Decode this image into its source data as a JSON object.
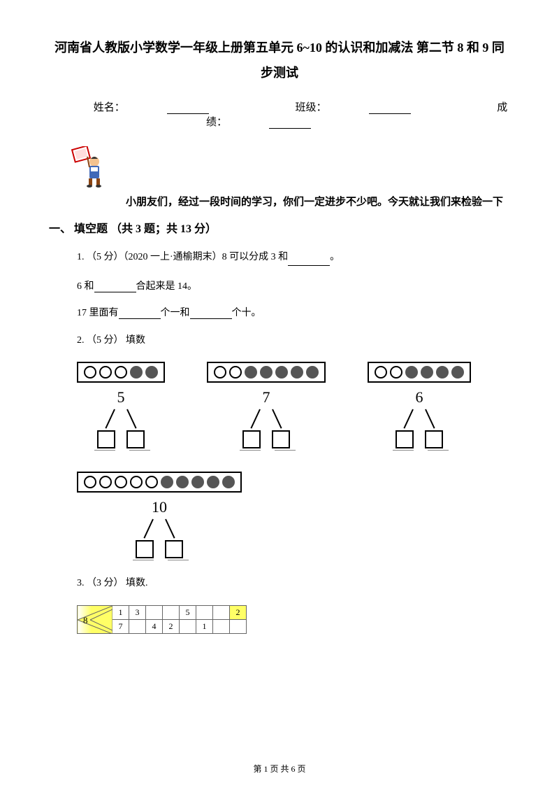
{
  "title": "河南省人教版小学数学一年级上册第五单元 6~10 的认识和加减法 第二节 8 和 9 同步测试",
  "info": {
    "name_label": "姓名：",
    "class_label": "班级：",
    "score_label": "成绩："
  },
  "intro": "小朋友们，经过一段时间的学习，你们一定进步不少吧。今天就让我们来检验一下",
  "section1": {
    "header": "一、 填空题 （共 3 题；共 13 分）",
    "q1": {
      "prefix": "1. （5 分）（2020 一上·通榆期末）8 可以分成 3 和",
      "suffix": "。",
      "line2_a": "6 和",
      "line2_b": "合起来是 14。",
      "line3_a": "17 里面有",
      "line3_b": "个一和",
      "line3_c": "个十。"
    },
    "q2": {
      "label": "2. （5 分） 填数",
      "diagrams": [
        {
          "total": "5",
          "white": 3,
          "filled": 2
        },
        {
          "total": "7",
          "white": 2,
          "filled": 5
        },
        {
          "total": "6",
          "white": 2,
          "filled": 4
        },
        {
          "total": "10",
          "white": 5,
          "filled": 5
        }
      ]
    },
    "q3": {
      "label": "3. （3 分） 填数.",
      "left_num": "8",
      "row1": [
        "1",
        "3",
        "",
        "",
        "5",
        "",
        "",
        "2"
      ],
      "row2": [
        "7",
        "",
        "4",
        "2",
        "",
        "1",
        "",
        ""
      ]
    }
  },
  "footer": "第 1 页 共 6 页",
  "colors": {
    "yellow": "#ffff66",
    "circle_fill": "#555555"
  }
}
